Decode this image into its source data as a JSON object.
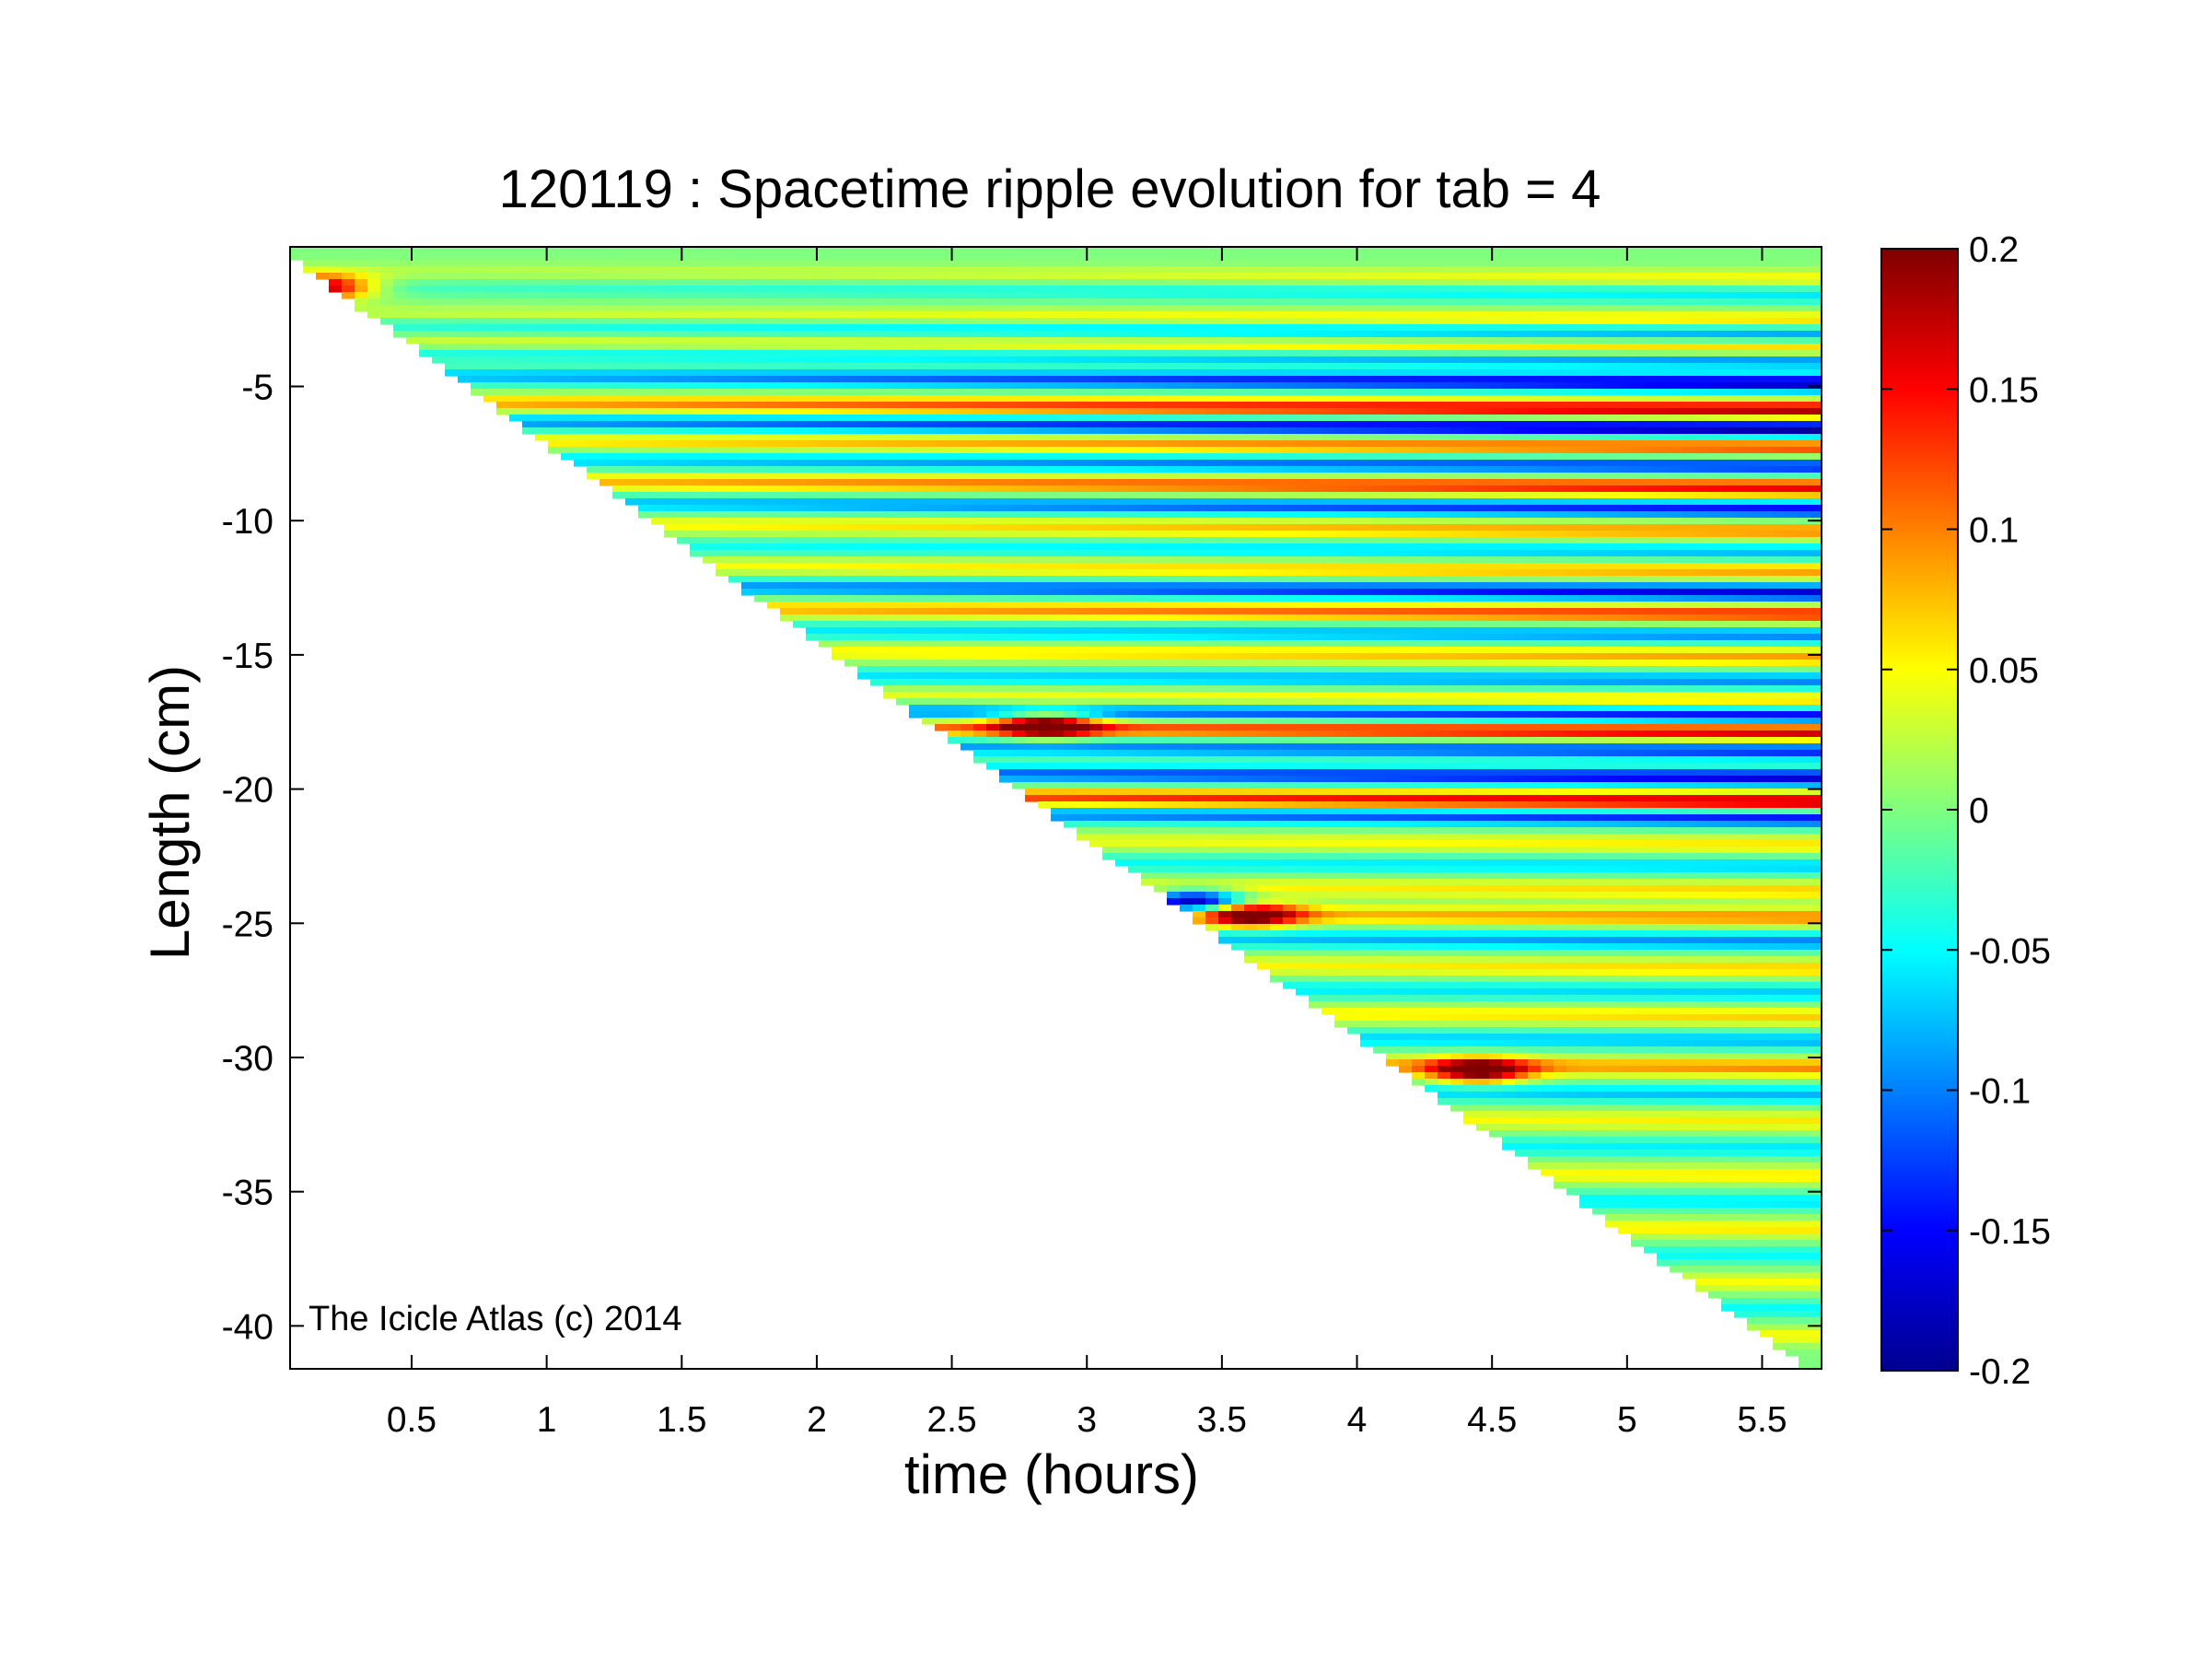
{
  "chart_data": {
    "type": "heatmap",
    "title": "120119 : Spacetime ripple evolution for tab = 4",
    "xlabel": "time (hours)",
    "ylabel": "Length (cm)",
    "xlim": [
      0.05,
      5.72
    ],
    "ylim": [
      -41.6,
      0.2
    ],
    "xticks": [
      0.5,
      1,
      1.5,
      2,
      2.5,
      3,
      3.5,
      4,
      4.5,
      5,
      5.5
    ],
    "xtick_labels": [
      "0.5",
      "1",
      "1.5",
      "2",
      "2.5",
      "3",
      "3.5",
      "4",
      "4.5",
      "5",
      "5.5"
    ],
    "yticks": [
      -5,
      -10,
      -15,
      -20,
      -25,
      -30,
      -35,
      -40
    ],
    "ytick_labels": [
      "-5",
      "-10",
      "-15",
      "-20",
      "-25",
      "-30",
      "-35",
      "-40"
    ],
    "colorbar": {
      "colormap": "jet",
      "range": [
        -0.2,
        0.2
      ],
      "ticks": [
        0.2,
        0.15,
        0.1,
        0.05,
        0,
        -0.05,
        -0.1,
        -0.15,
        -0.2
      ],
      "tick_labels": [
        "0.2",
        "0.15",
        "0.1",
        "0.05",
        "0",
        "-0.05",
        "-0.1",
        "-0.15",
        "-0.2"
      ]
    },
    "growth_front": {
      "description_points": [
        [
          0.05,
          0.2
        ],
        [
          5.72,
          -41.6
        ]
      ]
    },
    "ripples": [
      {
        "y": -0.7,
        "amp": 0.05
      },
      {
        "y": -1.3,
        "amp": -0.06
      },
      {
        "y": -2.3,
        "amp": 0.08
      },
      {
        "y": -2.7,
        "amp": -0.1
      },
      {
        "y": -3.4,
        "amp": 0.11
      },
      {
        "y": -3.7,
        "amp": -0.13
      },
      {
        "y": -4.6,
        "amp": -0.18
      },
      {
        "y": -5.6,
        "amp": 0.19
      },
      {
        "y": -6.3,
        "amp": -0.2
      },
      {
        "y": -7.0,
        "amp": 0.13
      },
      {
        "y": -7.7,
        "amp": -0.14
      },
      {
        "y": -8.5,
        "amp": 0.16
      },
      {
        "y": -9.3,
        "amp": -0.15
      },
      {
        "y": -10.1,
        "amp": 0.1
      },
      {
        "y": -10.9,
        "amp": -0.08
      },
      {
        "y": -11.6,
        "amp": 0.09
      },
      {
        "y": -12.4,
        "amp": -0.17
      },
      {
        "y": -13.2,
        "amp": 0.14
      },
      {
        "y": -14.0,
        "amp": -0.1
      },
      {
        "y": -14.8,
        "amp": 0.09
      },
      {
        "y": -15.7,
        "amp": -0.1
      },
      {
        "y": -16.4,
        "amp": 0.07
      },
      {
        "y": -17.0,
        "amp": -0.16
      },
      {
        "y": -17.6,
        "amp": 0.18
      },
      {
        "y": -18.3,
        "amp": -0.14
      },
      {
        "y": -19.3,
        "amp": -0.17
      },
      {
        "y": -20.2,
        "amp": 0.19
      },
      {
        "y": -20.8,
        "amp": -0.15
      },
      {
        "y": -21.8,
        "amp": 0.06
      },
      {
        "y": -22.6,
        "amp": -0.07
      },
      {
        "y": -23.5,
        "amp": 0.07
      },
      {
        "y": -24.5,
        "amp": 0.1
      },
      {
        "y": -25.4,
        "amp": -0.1
      },
      {
        "y": -26.4,
        "amp": 0.07
      },
      {
        "y": -27.3,
        "amp": -0.07
      },
      {
        "y": -28.2,
        "amp": 0.07
      },
      {
        "y": -29.1,
        "amp": -0.08
      },
      {
        "y": -30.1,
        "amp": 0.1
      },
      {
        "y": -31.1,
        "amp": -0.08
      },
      {
        "y": -32.1,
        "amp": 0.06
      },
      {
        "y": -33.1,
        "amp": -0.06
      },
      {
        "y": -34.1,
        "amp": 0.06
      },
      {
        "y": -35.1,
        "amp": -0.06
      },
      {
        "y": -36.1,
        "amp": 0.06
      },
      {
        "y": -37.1,
        "amp": -0.05
      },
      {
        "y": -38.1,
        "amp": 0.05
      },
      {
        "y": -39.1,
        "amp": -0.05
      },
      {
        "y": -40.1,
        "amp": 0.05
      }
    ],
    "hotspots": [
      {
        "x": 3.4,
        "y": -24.2,
        "value": -0.2
      },
      {
        "x": 3.6,
        "y": -24.7,
        "value": 0.2
      },
      {
        "x": 4.45,
        "y": -30.5,
        "value": 0.2
      },
      {
        "x": 2.85,
        "y": -17.6,
        "value": 0.2
      },
      {
        "x": 0.17,
        "y": -1.3,
        "value": 0.2
      }
    ],
    "annotation": "The Icicle Atlas (c) 2014"
  }
}
